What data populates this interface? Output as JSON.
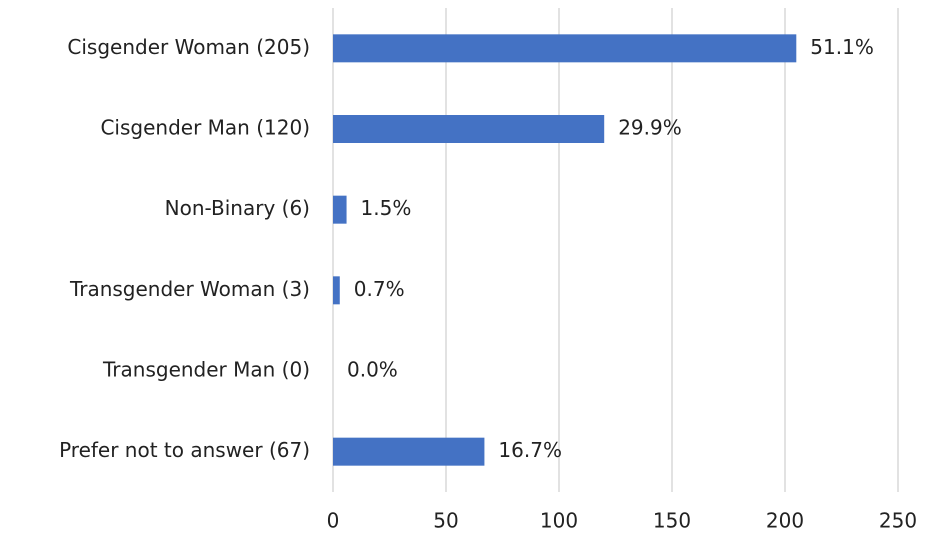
{
  "chart_data": {
    "type": "hbar",
    "categories": [
      "Cisgender Woman (205)",
      "Cisgender Man (120)",
      "Non-Binary (6)",
      "Transgender Woman (3)",
      "Transgender Man (0)",
      "Prefer not to answer (67)"
    ],
    "values": [
      205,
      120,
      6,
      3,
      0,
      67
    ],
    "share_labels": [
      "51.1%",
      "29.9%",
      "1.5%",
      "0.7%",
      "0.0%",
      "16.7%"
    ],
    "color": "#4472c4",
    "xlim": [
      0,
      250
    ],
    "xticks": [
      0,
      50,
      100,
      150,
      200,
      250
    ],
    "grid": true
  }
}
